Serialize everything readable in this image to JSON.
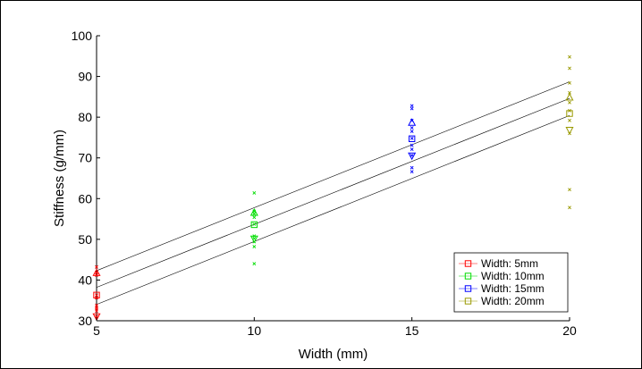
{
  "chart_data": {
    "type": "scatter",
    "xlabel": "Width (mm)",
    "ylabel": "Stiffness (g/mm)",
    "xlim": [
      5,
      20
    ],
    "ylim": [
      30,
      100
    ],
    "xticks": [
      "5",
      "10",
      "15",
      "20"
    ],
    "yticks": [
      "30",
      "40",
      "50",
      "60",
      "70",
      "80",
      "90",
      "100"
    ],
    "legend_position": "bottom-right",
    "series": [
      {
        "name": "Width: 5mm",
        "color": "#ff0000",
        "points": [
          [
            5,
            31
          ],
          [
            5,
            32.4
          ],
          [
            5,
            32.9
          ],
          [
            5,
            33.3
          ],
          [
            5,
            33.8
          ],
          [
            5,
            35.6
          ],
          [
            5,
            36.3
          ],
          [
            5,
            41.2
          ],
          [
            5,
            41.8
          ],
          [
            5,
            43.2
          ]
        ],
        "means": [
          [
            5,
            31,
            "down"
          ],
          [
            5,
            36.3,
            "square"
          ],
          [
            5,
            41.8,
            "up"
          ]
        ]
      },
      {
        "name": "Width: 10mm",
        "color": "#00dd00",
        "points": [
          [
            10,
            44
          ],
          [
            10,
            48.2
          ],
          [
            10,
            49.4
          ],
          [
            10,
            50.2
          ],
          [
            10,
            50.8
          ],
          [
            10,
            53.7
          ],
          [
            10,
            55.4
          ],
          [
            10,
            56.3
          ],
          [
            10,
            56.9
          ],
          [
            10,
            61.4
          ]
        ],
        "means": [
          [
            10,
            50.1,
            "down"
          ],
          [
            10,
            53.6,
            "square"
          ],
          [
            10,
            56.6,
            "up"
          ]
        ]
      },
      {
        "name": "Width: 15mm",
        "color": "#0000ff",
        "points": [
          [
            15,
            66.6
          ],
          [
            15,
            67.6
          ],
          [
            15,
            70.6
          ],
          [
            15,
            72.1
          ],
          [
            15,
            73.1
          ],
          [
            15,
            74.8
          ],
          [
            15,
            76.5
          ],
          [
            15,
            77.4
          ],
          [
            15,
            79.2
          ],
          [
            15,
            82.1
          ],
          [
            15,
            82.8
          ]
        ],
        "means": [
          [
            15,
            70.5,
            "down"
          ],
          [
            15,
            74.7,
            "square"
          ],
          [
            15,
            78.7,
            "up"
          ]
        ]
      },
      {
        "name": "Width: 20mm",
        "color": "#999900",
        "points": [
          [
            20,
            57.8
          ],
          [
            20,
            62.2
          ],
          [
            20,
            76
          ],
          [
            20,
            79.2
          ],
          [
            20,
            81.6
          ],
          [
            20,
            83.6
          ],
          [
            20,
            86
          ],
          [
            20,
            88.4
          ],
          [
            20,
            92
          ],
          [
            20,
            94.8
          ]
        ],
        "means": [
          [
            20,
            76.8,
            "down"
          ],
          [
            20,
            80.9,
            "square"
          ],
          [
            20,
            84.9,
            "up"
          ]
        ]
      }
    ],
    "fit_lines": [
      {
        "x": [
          5,
          20
        ],
        "y": [
          34,
          80.4
        ]
      },
      {
        "x": [
          5,
          20
        ],
        "y": [
          38.2,
          84.6
        ]
      },
      {
        "x": [
          5,
          20
        ],
        "y": [
          42.3,
          88.7
        ]
      }
    ]
  }
}
